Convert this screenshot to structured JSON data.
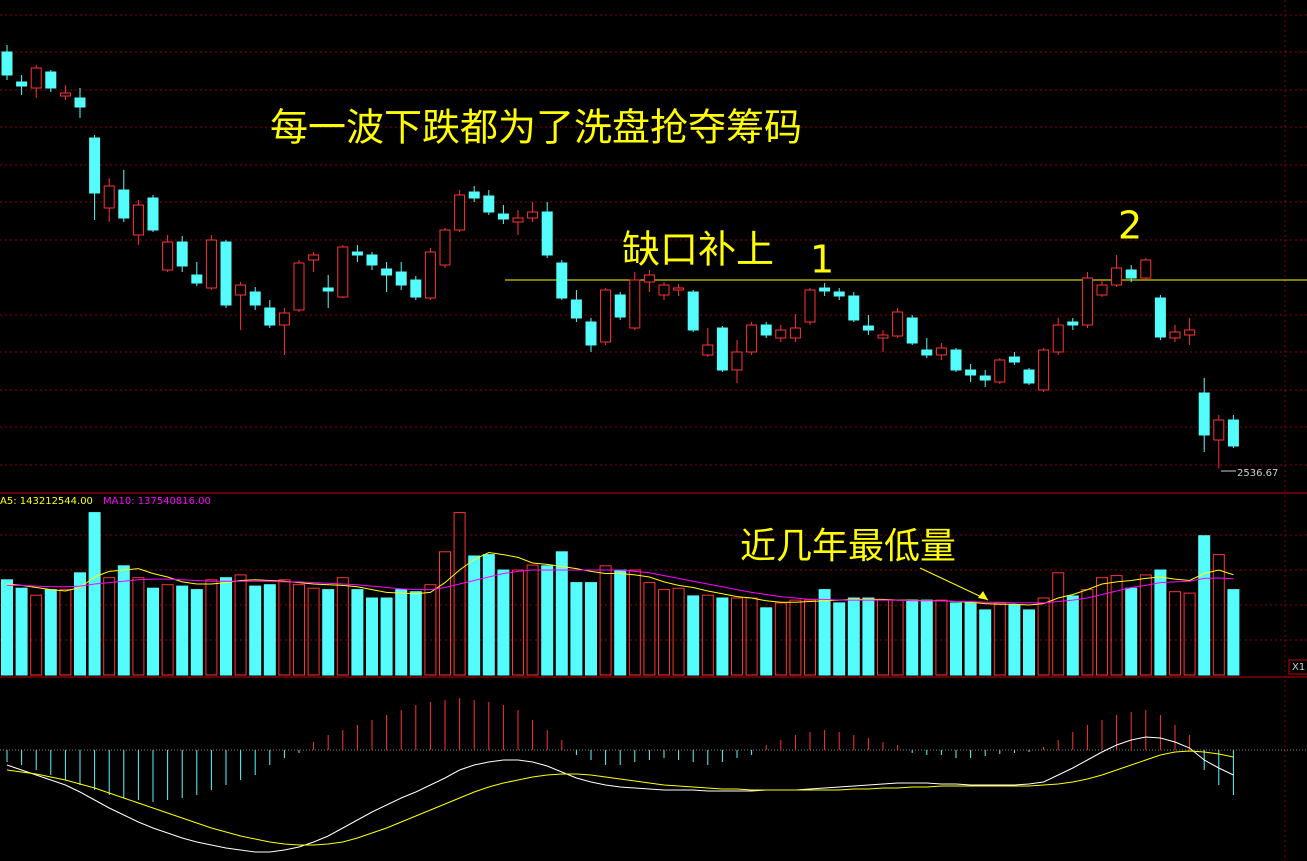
{
  "chart_data": {
    "type": "candlestick",
    "title": "每一波下跌都为了洗盘抢夺筹码",
    "annotations": {
      "gap": "缺口补上",
      "point1": "1",
      "point2": "2",
      "low_volume": "近几年最低量"
    },
    "up_color": "#ff3232",
    "down_color": "#54fcfc",
    "ylim": [
      2513,
      3005
    ],
    "gap_level": 2725,
    "candles": [
      [
        2953,
        2930,
        2960,
        2925
      ],
      [
        2923,
        2919,
        2930,
        2910
      ],
      [
        2917,
        2937,
        2940,
        2907
      ],
      [
        2933,
        2917,
        2935,
        2913
      ],
      [
        2909,
        2912,
        2920,
        2905
      ],
      [
        2907,
        2898,
        2917,
        2887
      ],
      [
        2867,
        2812,
        2870,
        2785
      ],
      [
        2797,
        2819,
        2827,
        2783
      ],
      [
        2815,
        2787,
        2835,
        2783
      ],
      [
        2770,
        2800,
        2805,
        2760
      ],
      [
        2807,
        2775,
        2810,
        2773
      ],
      [
        2735,
        2763,
        2770,
        2733
      ],
      [
        2763,
        2739,
        2769,
        2733
      ],
      [
        2730,
        2722,
        2743,
        2719
      ],
      [
        2717,
        2765,
        2770,
        2715
      ],
      [
        2763,
        2700,
        2765,
        2697
      ],
      [
        2710,
        2720,
        2723,
        2675
      ],
      [
        2713,
        2700,
        2718,
        2695
      ],
      [
        2697,
        2680,
        2705,
        2677
      ],
      [
        2680,
        2692,
        2697,
        2650
      ],
      [
        2695,
        2742,
        2745,
        2693
      ],
      [
        2745,
        2750,
        2753,
        2733
      ],
      [
        2717,
        2714,
        2730,
        2697
      ],
      [
        2708,
        2758,
        2760,
        2707
      ],
      [
        2753,
        2750,
        2760,
        2743
      ],
      [
        2750,
        2740,
        2753,
        2735
      ],
      [
        2736,
        2730,
        2743,
        2713
      ],
      [
        2733,
        2720,
        2743,
        2715
      ],
      [
        2725,
        2708,
        2729,
        2705
      ],
      [
        2707,
        2753,
        2757,
        2705
      ],
      [
        2740,
        2775,
        2777,
        2737
      ],
      [
        2775,
        2810,
        2815,
        2773
      ],
      [
        2813,
        2807,
        2819,
        2803
      ],
      [
        2809,
        2793,
        2815,
        2790
      ],
      [
        2791,
        2786,
        2800,
        2781
      ],
      [
        2783,
        2787,
        2795,
        2770
      ],
      [
        2787,
        2793,
        2803,
        2783
      ],
      [
        2793,
        2750,
        2803,
        2747
      ],
      [
        2742,
        2707,
        2745,
        2705
      ],
      [
        2705,
        2687,
        2715,
        2683
      ],
      [
        2683,
        2660,
        2687,
        2653
      ],
      [
        2663,
        2715,
        2717,
        2660
      ],
      [
        2710,
        2688,
        2713,
        2685
      ],
      [
        2677,
        2725,
        2733,
        2675
      ],
      [
        2723,
        2730,
        2735,
        2713
      ],
      [
        2710,
        2720,
        2723,
        2705
      ],
      [
        2715,
        2717,
        2721,
        2709
      ],
      [
        2713,
        2675,
        2715,
        2673
      ],
      [
        2650,
        2660,
        2677,
        2648
      ],
      [
        2677,
        2635,
        2679,
        2633
      ],
      [
        2635,
        2653,
        2665,
        2622
      ],
      [
        2653,
        2680,
        2683,
        2650
      ],
      [
        2680,
        2670,
        2683,
        2667
      ],
      [
        2667,
        2675,
        2680,
        2663
      ],
      [
        2667,
        2677,
        2691,
        2663
      ],
      [
        2683,
        2715,
        2717,
        2680
      ],
      [
        2717,
        2714,
        2722,
        2709
      ],
      [
        2713,
        2709,
        2717,
        2705
      ],
      [
        2709,
        2685,
        2713,
        2683
      ],
      [
        2679,
        2675,
        2690,
        2670
      ],
      [
        2667,
        2670,
        2675,
        2653
      ],
      [
        2669,
        2693,
        2697,
        2667
      ],
      [
        2687,
        2662,
        2690,
        2660
      ],
      [
        2655,
        2650,
        2667,
        2647
      ],
      [
        2650,
        2657,
        2662,
        2645
      ],
      [
        2655,
        2635,
        2657,
        2633
      ],
      [
        2635,
        2630,
        2641,
        2623
      ],
      [
        2629,
        2625,
        2635,
        2618
      ],
      [
        2623,
        2645,
        2647,
        2621
      ],
      [
        2648,
        2643,
        2653,
        2640
      ],
      [
        2635,
        2622,
        2637,
        2620
      ],
      [
        2615,
        2655,
        2657,
        2613
      ],
      [
        2653,
        2680,
        2687,
        2650
      ],
      [
        2683,
        2680,
        2687,
        2675
      ],
      [
        2680,
        2727,
        2733,
        2677
      ],
      [
        2710,
        2720,
        2725,
        2708
      ],
      [
        2720,
        2737,
        2750,
        2718
      ],
      [
        2735,
        2727,
        2740,
        2723
      ],
      [
        2727,
        2745,
        2747,
        2725
      ],
      [
        2707,
        2668,
        2710,
        2665
      ],
      [
        2667,
        2673,
        2680,
        2663
      ],
      [
        2670,
        2675,
        2687,
        2660
      ],
      [
        2612,
        2570,
        2627,
        2553
      ],
      [
        2565,
        2585,
        2590,
        2536.67
      ],
      [
        2585,
        2559,
        2590,
        2557
      ]
    ],
    "volume": {
      "ma5_label": "A5: 143212544.00",
      "ma10_label": "MA10: 137540816.00",
      "side_label": "X1",
      "ma5_color": "#ffff00",
      "ma10_color": "#ff00ff",
      "ylim": [
        0,
        260
      ],
      "values": [
        136,
        124,
        114,
        122,
        122,
        146,
        232,
        139,
        156,
        139,
        124,
        129,
        127,
        122,
        136,
        139,
        143,
        127,
        129,
        136,
        129,
        124,
        122,
        139,
        122,
        110,
        110,
        122,
        119,
        129,
        176,
        232,
        170,
        172,
        150,
        150,
        157,
        156,
        176,
        132,
        132,
        156,
        150,
        150,
        132,
        122,
        124,
        113,
        114,
        110,
        110,
        110,
        96,
        103,
        107,
        107,
        122,
        103,
        110,
        110,
        107,
        107,
        107,
        107,
        107,
        103,
        103,
        93,
        103,
        100,
        93,
        110,
        146,
        113,
        122,
        139,
        142,
        124,
        143,
        150,
        119,
        117,
        199,
        172,
        122
      ],
      "ma5": [
        130,
        128,
        125,
        122,
        120,
        125,
        140,
        148,
        150,
        152,
        145,
        140,
        133,
        130,
        130,
        132,
        135,
        136,
        135,
        134,
        132,
        130,
        129,
        128,
        126,
        122,
        118,
        117,
        116,
        118,
        132,
        150,
        165,
        175,
        172,
        168,
        160,
        158,
        155,
        152,
        148,
        145,
        145,
        143,
        140,
        133,
        128,
        125,
        120,
        116,
        112,
        110,
        106,
        104,
        104,
        105,
        106,
        107,
        108,
        108,
        108,
        107,
        107,
        106,
        106,
        105,
        104,
        102,
        101,
        101,
        100,
        102,
        110,
        115,
        122,
        130,
        133,
        135,
        138,
        140,
        137,
        135,
        145,
        150,
        143.212544
      ],
      "ma10": [
        128,
        128,
        127,
        126,
        126,
        127,
        130,
        132,
        134,
        136,
        137,
        137,
        136,
        135,
        134,
        134,
        134,
        134,
        134,
        133,
        133,
        132,
        131,
        130,
        129,
        127,
        125,
        123,
        122,
        122,
        125,
        130,
        135,
        140,
        145,
        148,
        150,
        150,
        150,
        150,
        150,
        150,
        150,
        148,
        146,
        142,
        138,
        134,
        130,
        126,
        122,
        118,
        115,
        112,
        110,
        108,
        108,
        107,
        107,
        107,
        107,
        107,
        106,
        106,
        106,
        105,
        105,
        104,
        104,
        103,
        103,
        103,
        105,
        107,
        110,
        115,
        120,
        125,
        128,
        132,
        133,
        134,
        138,
        138.5,
        137.540816
      ]
    },
    "macd": {
      "ylim": [
        -55.5,
        36.5
      ],
      "dif_color": "#ffffff",
      "dea_color": "#ffff00",
      "hist": [
        -6,
        -7.5,
        -10,
        -12.5,
        -15,
        -17.5,
        -20,
        -22.5,
        -24,
        -25,
        -26,
        -25,
        -24,
        -22.5,
        -20,
        -17.5,
        -15,
        -12.5,
        -7.5,
        -4,
        -1.5,
        4,
        7.5,
        10,
        12.5,
        15,
        17.5,
        20,
        22.5,
        24,
        25,
        26,
        25,
        24,
        22.5,
        20,
        15,
        10,
        5,
        -2.5,
        -5,
        -7.5,
        -7.5,
        -6,
        -5,
        -4,
        -5,
        -6,
        -7.5,
        -6,
        -4,
        -2.5,
        2.5,
        5,
        7.5,
        9,
        10,
        9,
        7.5,
        6,
        4,
        2.5,
        -1.5,
        -2.5,
        -2.5,
        -4,
        -4,
        -3,
        -2,
        -1.5,
        -1,
        1.5,
        5,
        9,
        12.5,
        15,
        17.5,
        19,
        20,
        17.5,
        12.5,
        7.5,
        -10,
        -17.5,
        -22.5
      ],
      "dif": [
        -7.5,
        -10,
        -12.5,
        -15,
        -17.5,
        -21,
        -25,
        -29,
        -32.5,
        -36,
        -39,
        -41.5,
        -44,
        -46,
        -47.5,
        -49,
        -50,
        -51,
        -51,
        -50,
        -48.5,
        -46,
        -43,
        -39,
        -35,
        -31,
        -27.5,
        -24,
        -21,
        -17.5,
        -14,
        -10,
        -7.5,
        -6,
        -5,
        -5,
        -6,
        -8,
        -11,
        -14,
        -16,
        -17.5,
        -18.5,
        -19,
        -19.5,
        -20,
        -20,
        -20,
        -20.5,
        -20.5,
        -20.5,
        -20.5,
        -20,
        -20,
        -20,
        -19.5,
        -19,
        -18.5,
        -18,
        -17.5,
        -17,
        -16.5,
        -16.5,
        -16.5,
        -17,
        -17,
        -17.5,
        -17.5,
        -17.5,
        -17.5,
        -17,
        -16,
        -12.5,
        -9,
        -5,
        -1,
        2.5,
        5,
        6.5,
        6,
        4,
        1,
        -5,
        -9,
        -12.5
      ],
      "dea": [
        -10,
        -11,
        -12,
        -13.5,
        -15,
        -17,
        -19,
        -21.5,
        -24,
        -26.5,
        -29,
        -31.5,
        -34,
        -36.5,
        -39,
        -41,
        -43,
        -44.5,
        -46,
        -47,
        -47.5,
        -47.5,
        -47,
        -46,
        -44,
        -41.5,
        -39,
        -36,
        -33,
        -30,
        -27,
        -24,
        -21,
        -18.5,
        -16.5,
        -15,
        -13.5,
        -12.5,
        -12,
        -12,
        -12.5,
        -13.5,
        -14.5,
        -15.5,
        -16.5,
        -17.5,
        -18,
        -18.5,
        -19,
        -19.5,
        -19.5,
        -20,
        -20,
        -20,
        -20,
        -20,
        -20,
        -20,
        -19.5,
        -19.5,
        -19,
        -19,
        -18.5,
        -18.5,
        -18,
        -18,
        -18,
        -18,
        -18,
        -18,
        -18,
        -17.5,
        -17,
        -16,
        -14.5,
        -12.5,
        -10,
        -7.5,
        -5,
        -2.5,
        -1,
        -0.5,
        -1,
        -2,
        -3.5
      ]
    }
  }
}
